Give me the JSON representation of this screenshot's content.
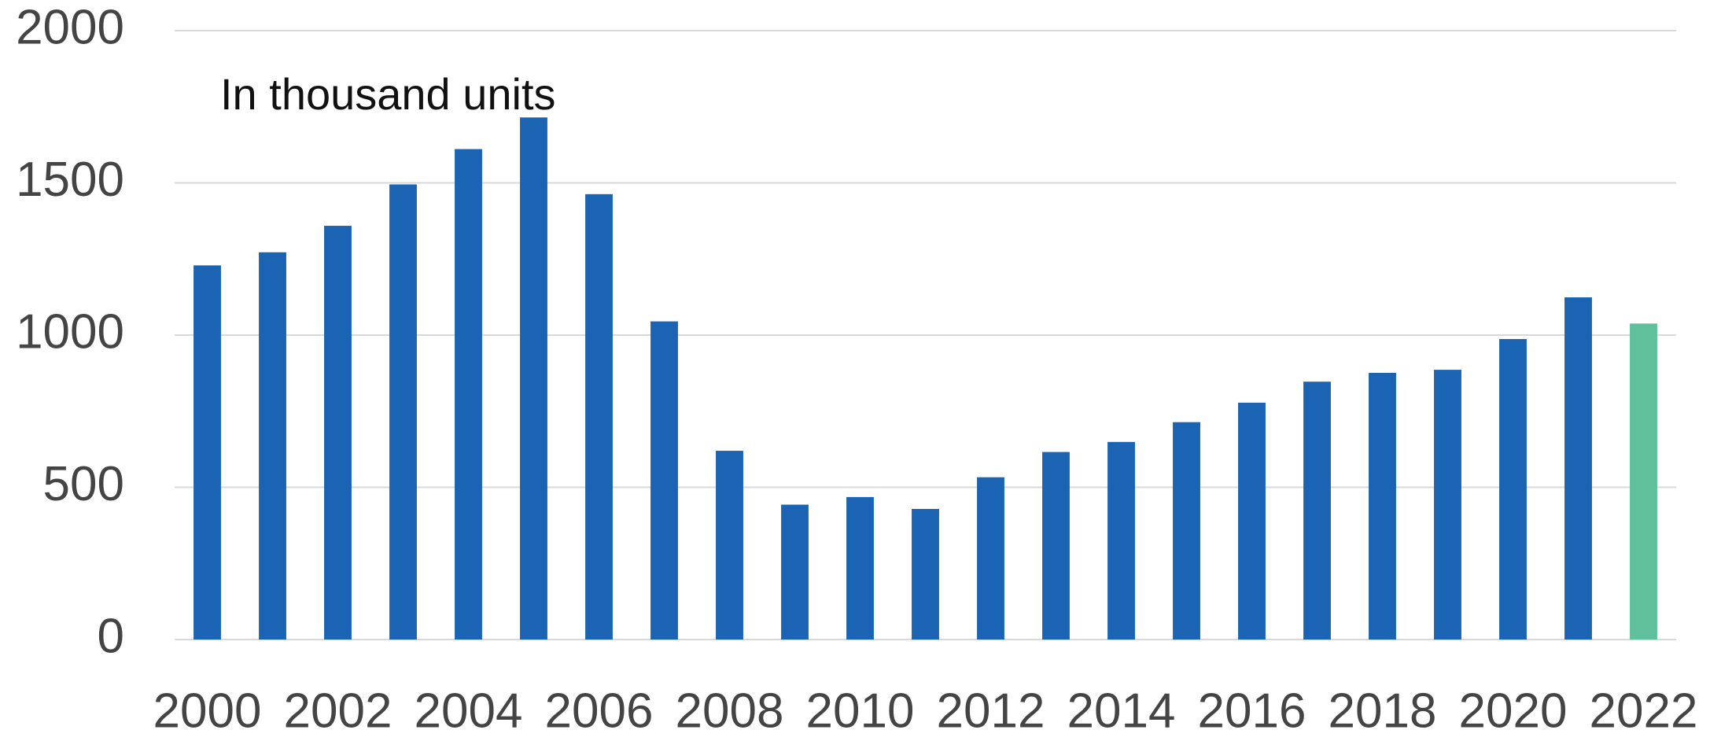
{
  "chart_data": {
    "type": "bar",
    "annotation": "In thousand units",
    "categories": [
      "2000",
      null,
      "2002",
      null,
      "2004",
      null,
      "2006",
      null,
      "2008",
      null,
      "2010",
      null,
      "2012",
      null,
      "2014",
      null,
      "2016",
      null,
      "2018",
      null,
      "2020",
      null,
      "2022"
    ],
    "values": [
      1229,
      1272,
      1359,
      1495,
      1611,
      1715,
      1463,
      1045,
      620,
      443,
      468,
      429,
      533,
      616,
      649,
      714,
      778,
      847,
      876,
      886,
      987,
      1124,
      1038
    ],
    "colors": [
      "#1a64b3",
      "#1a64b3",
      "#1a64b3",
      "#1a64b3",
      "#1a64b3",
      "#1a64b3",
      "#1a64b3",
      "#1a64b3",
      "#1a64b3",
      "#1a64b3",
      "#1a64b3",
      "#1a64b3",
      "#1a64b3",
      "#1a64b3",
      "#1a64b3",
      "#1a64b3",
      "#1a64b3",
      "#1a64b3",
      "#1a64b3",
      "#1a64b3",
      "#1a64b3",
      "#1a64b3",
      "#5fc09b"
    ],
    "ylim": [
      0,
      2000
    ],
    "yticks": [
      0,
      500,
      1000,
      1500,
      2000
    ],
    "grid": true
  }
}
